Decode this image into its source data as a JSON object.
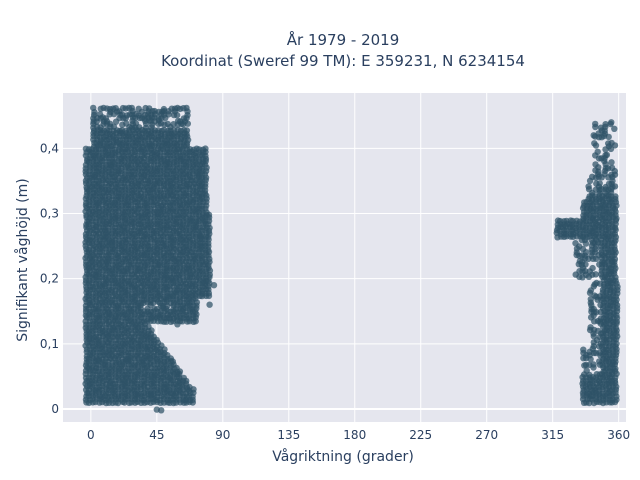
{
  "chart_data": {
    "type": "scatter",
    "title_line1": "År 1979 - 2019",
    "title_line2": "Koordinat (Sweref 99 TM): E 359231, N 6234154",
    "xlabel": "Vågriktning (grader)",
    "ylabel": "Signifikant våghöjd (m)",
    "xlim": [
      -19,
      365
    ],
    "ylim": [
      -0.02,
      0.485
    ],
    "x_ticks": [
      0,
      45,
      90,
      135,
      180,
      225,
      270,
      315,
      360
    ],
    "x_tick_labels": [
      "0",
      "45",
      "90",
      "135",
      "180",
      "225",
      "270",
      "315",
      "360"
    ],
    "y_ticks": [
      0,
      0.1,
      0.2,
      0.3,
      0.4
    ],
    "y_tick_labels": [
      "0",
      "0,1",
      "0,2",
      "0,3",
      "0,4"
    ],
    "grid": true,
    "legend": "none",
    "marker_color": "#2e5266",
    "plot_background": "#e5e6ee",
    "series": [
      {
        "clusters": [
          {
            "x_range": [
              -3,
              82
            ],
            "y_range": [
              0.01,
              0.46
            ],
            "note": "dense block, wide at upper heights"
          },
          {
            "x_range": [
              -3,
              70
            ],
            "y_range": [
              0.0,
              0.13
            ],
            "note": "lower spread tapering to x≈72 near y≈0.03"
          },
          {
            "x_range": [
              315,
              359
            ],
            "y_range": [
              0.01,
              0.44
            ],
            "note": "north-northwest block, dense x 335–359"
          }
        ]
      }
    ]
  }
}
